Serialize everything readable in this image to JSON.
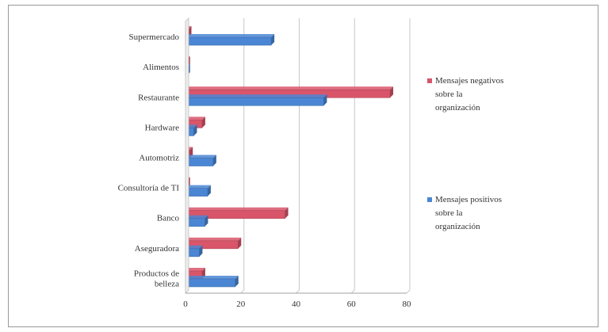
{
  "chart_data": {
    "type": "bar",
    "orientation": "horizontal",
    "title": "",
    "xlabel": "",
    "ylabel": "",
    "xlim": [
      0,
      80
    ],
    "xticks": [
      0,
      20,
      40,
      60,
      80
    ],
    "grid": true,
    "legend_position": "right",
    "categories": [
      "Supermercado",
      "Alimentos",
      "Restaurante",
      "Hardware",
      "Automotriz",
      "Consultoría de TI",
      "Banco",
      "Aseguradora",
      "Productos de belleza"
    ],
    "series": [
      {
        "name": "Mensajes negativos sobre la organización",
        "color": "#d9556a",
        "values": [
          1,
          0.5,
          74,
          6,
          1.5,
          0.5,
          36,
          19,
          6
        ]
      },
      {
        "name": "Mensajes positivos sobre la organización",
        "color": "#4a86d4",
        "values": [
          31,
          0.5,
          50,
          3,
          10,
          8,
          7,
          5,
          18
        ]
      }
    ]
  }
}
